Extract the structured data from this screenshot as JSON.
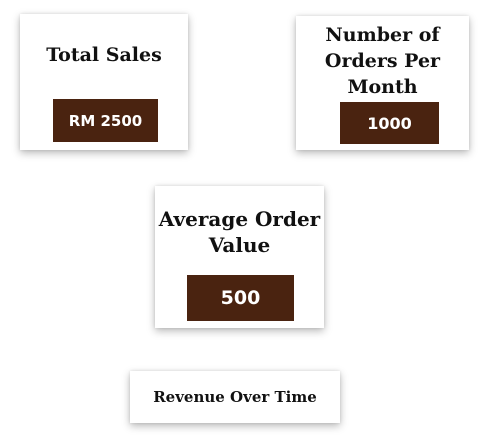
{
  "cards": {
    "total_sales": {
      "title": "Total Sales",
      "value": "RM 2500"
    },
    "orders_per_month": {
      "title": "Number of Orders Per Month",
      "value": "1000"
    },
    "average_order_value": {
      "title": "Average Order Value",
      "value": "500"
    },
    "revenue_over_time": {
      "title": "Revenue Over Time"
    }
  },
  "colors": {
    "value_box_bg": "#4a2310",
    "value_text": "#ffffff",
    "title_text": "#111111"
  }
}
